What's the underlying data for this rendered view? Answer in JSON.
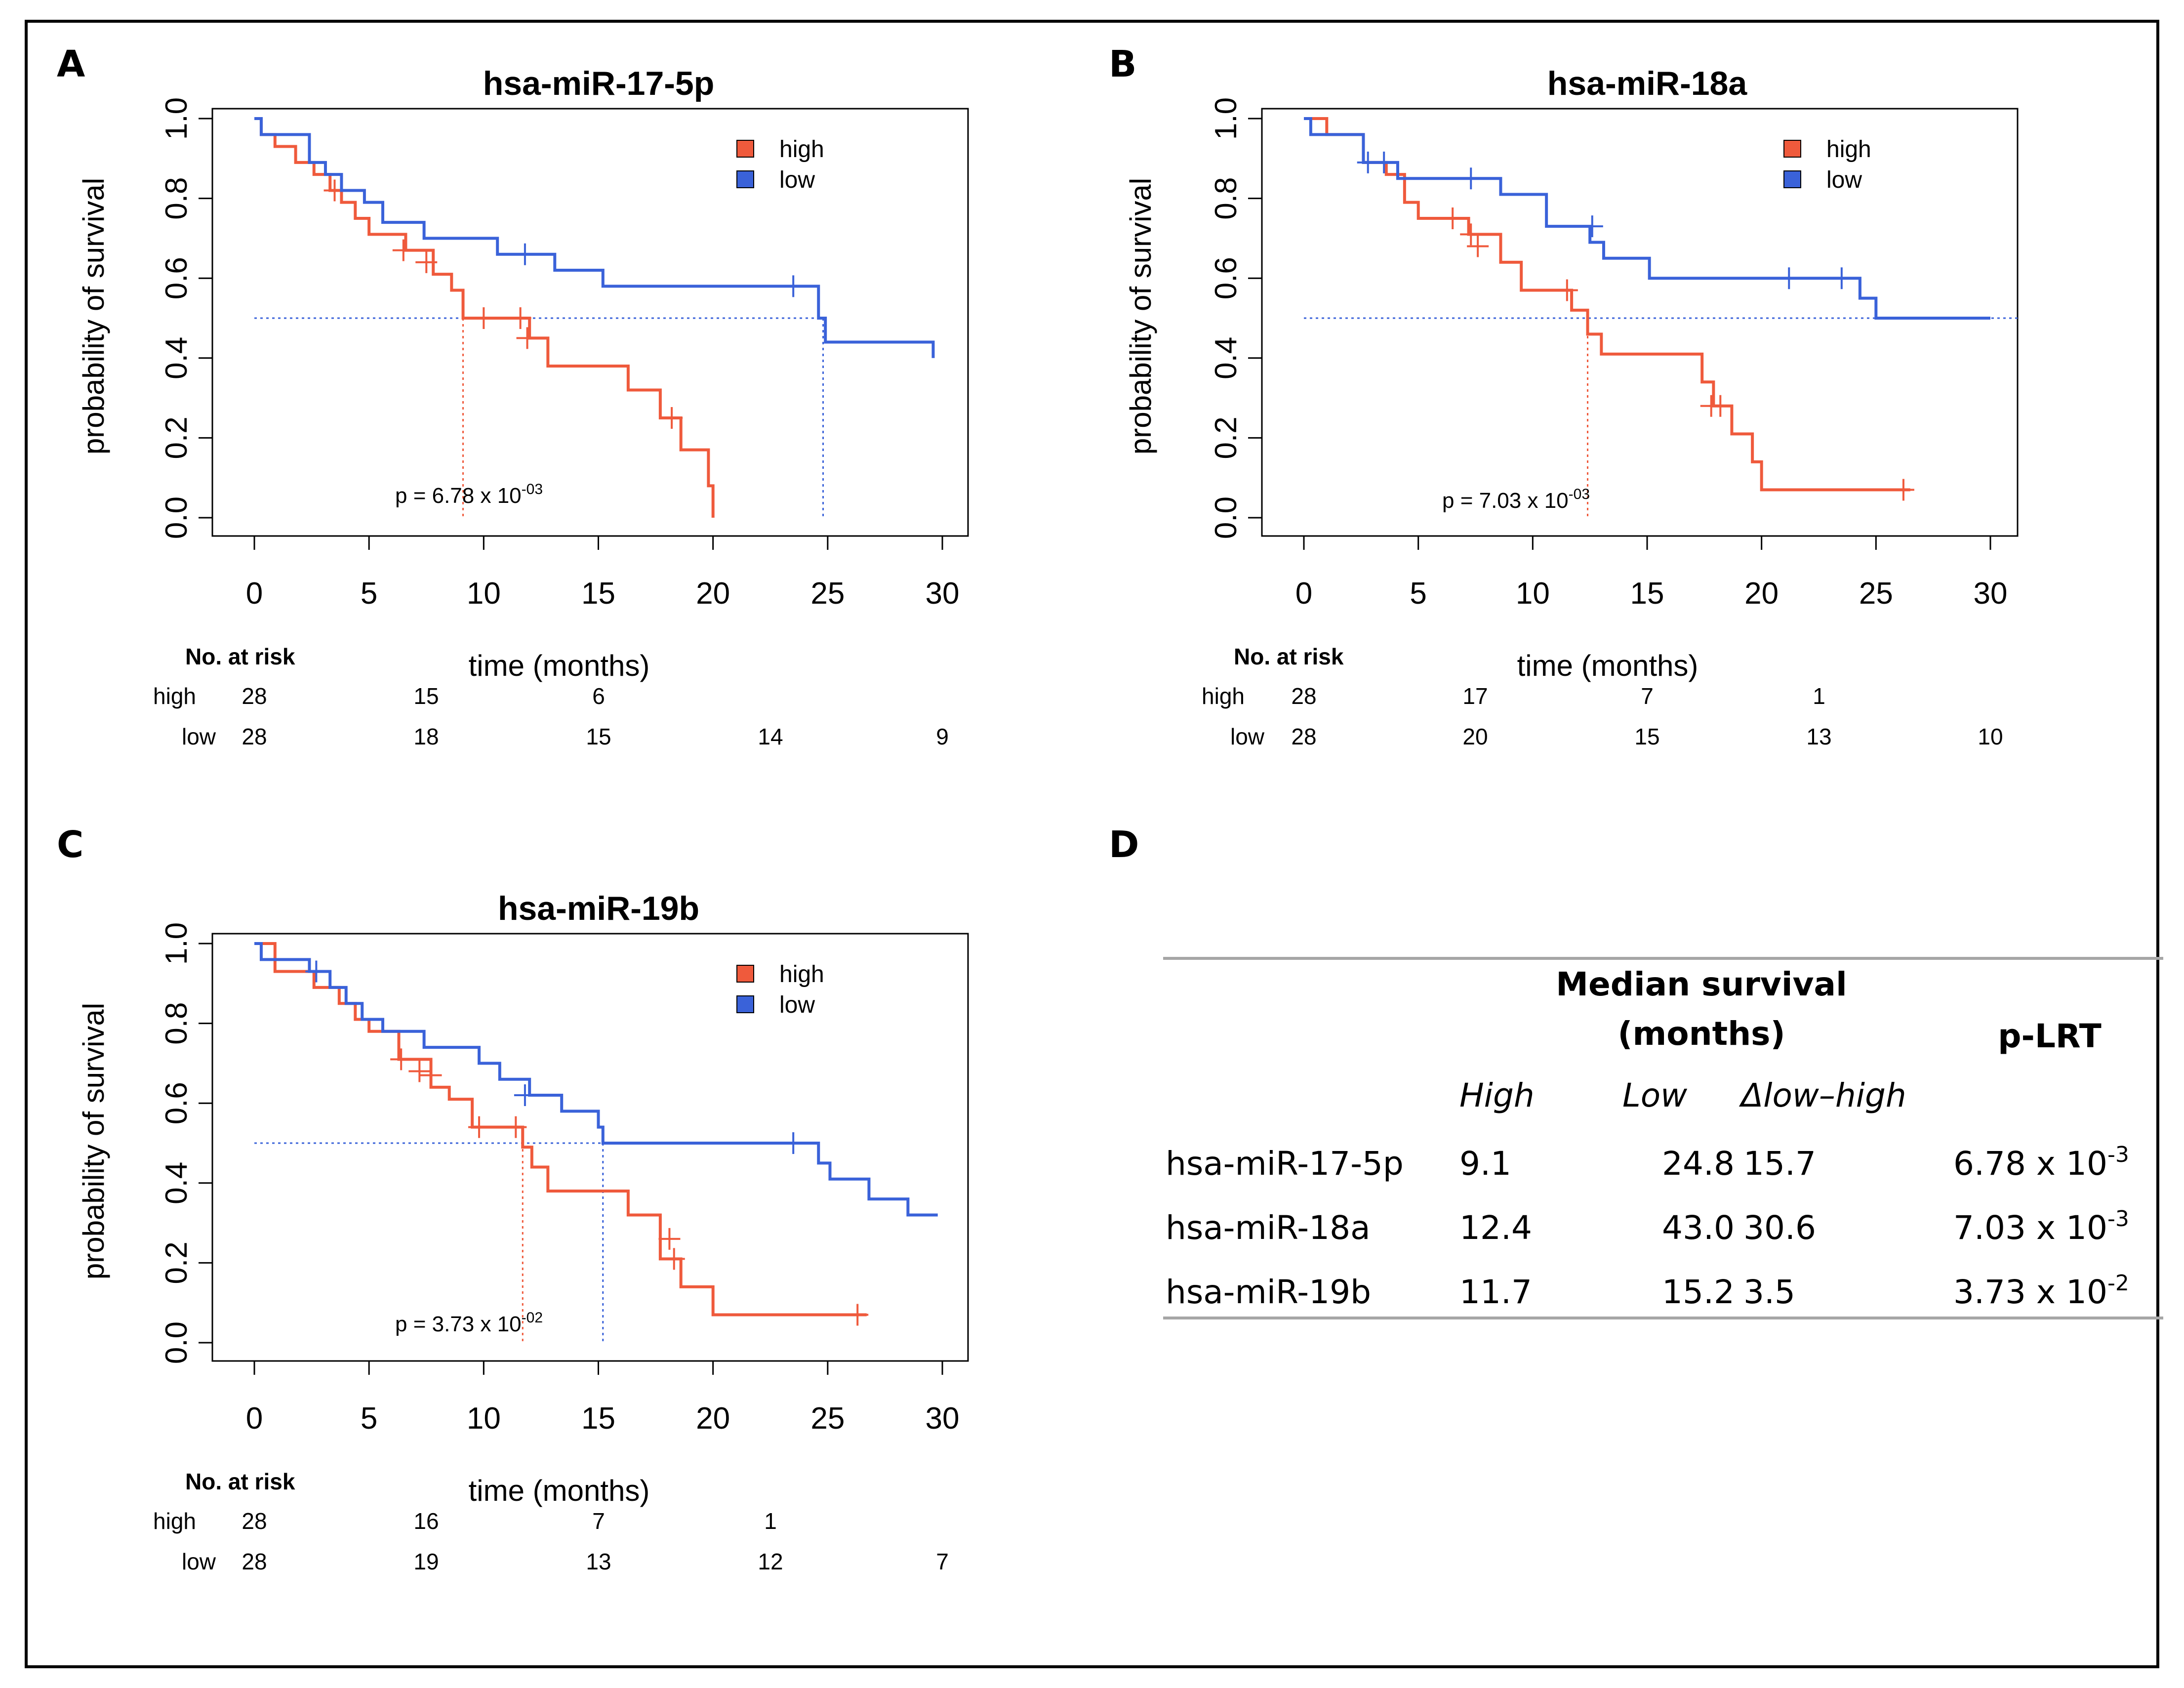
{
  "colors": {
    "high": "#ef5a3c",
    "low": "#3a62d9"
  },
  "chart_data": [
    {
      "panel_label": "A",
      "type": "line",
      "title": "hsa-miR-17-5p",
      "xlabel": "time (months)",
      "ylabel": "probability of survival",
      "xlim": [
        0,
        30
      ],
      "ylim": [
        0,
        1
      ],
      "xticks": [
        "0",
        "5",
        "10",
        "15",
        "20",
        "25",
        "30"
      ],
      "yticks": [
        "0.0",
        "0.2",
        "0.4",
        "0.6",
        "0.8",
        "1.0"
      ],
      "legend": [
        "high",
        "low"
      ],
      "p_text": "p = 6.78 x 10",
      "p_exp": "-03",
      "medians": [
        {
          "series": "high",
          "value": 9.1
        },
        {
          "series": "low",
          "value": 24.8
        }
      ],
      "series": [
        {
          "name": "high",
          "color": "#ef5a3c",
          "x": [
            0,
            0.3,
            0.9,
            1.8,
            2.6,
            3.3,
            3.8,
            4.4,
            5.0,
            6.6,
            7.8,
            8.6,
            9.1,
            12.0,
            12.8,
            16.3,
            17.7,
            18.6,
            19.8,
            20.0
          ],
          "y": [
            1.0,
            0.96,
            0.93,
            0.89,
            0.86,
            0.82,
            0.79,
            0.75,
            0.71,
            0.67,
            0.61,
            0.57,
            0.5,
            0.45,
            0.38,
            0.32,
            0.25,
            0.17,
            0.08,
            0.0
          ],
          "censor_x": [
            3.5,
            6.5,
            7.5,
            10.0,
            11.6,
            11.9,
            18.2
          ],
          "censor_y": [
            0.82,
            0.67,
            0.64,
            0.5,
            0.5,
            0.45,
            0.25
          ]
        },
        {
          "name": "low",
          "color": "#3a62d9",
          "x": [
            0,
            0.3,
            2.4,
            3.1,
            3.8,
            4.8,
            5.6,
            7.4,
            10.6,
            13.1,
            15.2,
            24.6,
            24.9,
            29.6
          ],
          "y": [
            1.0,
            0.96,
            0.89,
            0.86,
            0.82,
            0.79,
            0.74,
            0.7,
            0.66,
            0.62,
            0.58,
            0.5,
            0.44,
            0.4
          ],
          "censor_x": [
            11.8,
            23.5
          ],
          "censor_y": [
            0.66,
            0.58
          ]
        }
      ],
      "risk_table": {
        "header": "No. at risk",
        "rows": [
          {
            "label": "high",
            "values": [
              "28",
              "15",
              "6"
            ]
          },
          {
            "label": "low",
            "values": [
              "28",
              "18",
              "15",
              "14",
              "9"
            ]
          }
        ]
      }
    },
    {
      "panel_label": "B",
      "type": "line",
      "title": "hsa-miR-18a",
      "xlabel": "time (months)",
      "ylabel": "probability of survival",
      "xlim": [
        0,
        30
      ],
      "ylim": [
        0,
        1
      ],
      "xticks": [
        "0",
        "5",
        "10",
        "15",
        "20",
        "25",
        "30"
      ],
      "yticks": [
        "0.0",
        "0.2",
        "0.4",
        "0.6",
        "0.8",
        "1.0"
      ],
      "legend": [
        "high",
        "low"
      ],
      "p_text": "p = 7.03 x 10",
      "p_exp": "-03",
      "medians": [
        {
          "series": "high",
          "value": 12.4
        }
      ],
      "series": [
        {
          "name": "high",
          "color": "#ef5a3c",
          "x": [
            0,
            1.0,
            2.6,
            3.6,
            4.4,
            5.0,
            7.2,
            8.6,
            9.5,
            11.7,
            12.4,
            13.0,
            17.4,
            17.9,
            18.7,
            19.6,
            20.0,
            26.5
          ],
          "y": [
            1.0,
            0.96,
            0.89,
            0.86,
            0.79,
            0.75,
            0.71,
            0.64,
            0.57,
            0.52,
            0.46,
            0.41,
            0.34,
            0.28,
            0.21,
            0.14,
            0.07,
            0.07
          ],
          "censor_x": [
            6.5,
            7.3,
            7.6,
            11.5,
            17.8,
            18.2,
            26.2
          ],
          "censor_y": [
            0.75,
            0.71,
            0.68,
            0.57,
            0.28,
            0.28,
            0.07
          ]
        },
        {
          "name": "low",
          "color": "#3a62d9",
          "x": [
            0,
            0.3,
            2.6,
            4.1,
            8.6,
            10.6,
            12.5,
            13.1,
            15.1,
            23.8,
            24.3,
            25.0,
            30.0
          ],
          "y": [
            1.0,
            0.96,
            0.89,
            0.85,
            0.81,
            0.73,
            0.69,
            0.65,
            0.6,
            0.6,
            0.55,
            0.5,
            0.5
          ],
          "censor_x": [
            2.8,
            3.5,
            7.3,
            12.6,
            21.2,
            23.5
          ],
          "censor_y": [
            0.89,
            0.89,
            0.85,
            0.73,
            0.6,
            0.6
          ]
        }
      ],
      "risk_table": {
        "header": "No. at risk",
        "rows": [
          {
            "label": "high",
            "values": [
              "28",
              "17",
              "7",
              "1"
            ]
          },
          {
            "label": "low",
            "values": [
              "28",
              "20",
              "15",
              "13",
              "10"
            ]
          }
        ]
      }
    },
    {
      "panel_label": "C",
      "type": "line",
      "title": "hsa-miR-19b",
      "xlabel": "time (months)",
      "ylabel": "probability of survival",
      "xlim": [
        0,
        30
      ],
      "ylim": [
        0,
        1
      ],
      "xticks": [
        "0",
        "5",
        "10",
        "15",
        "20",
        "25",
        "30"
      ],
      "yticks": [
        "0.0",
        "0.2",
        "0.4",
        "0.6",
        "0.8",
        "1.0"
      ],
      "legend": [
        "high",
        "low"
      ],
      "p_text": "p = 3.73 x 10",
      "p_exp": "-02",
      "medians": [
        {
          "series": "high",
          "value": 11.7
        },
        {
          "series": "low",
          "value": 15.2
        }
      ],
      "series": [
        {
          "name": "high",
          "color": "#ef5a3c",
          "x": [
            0,
            0.9,
            2.6,
            3.7,
            4.4,
            5.0,
            6.3,
            7.7,
            8.5,
            9.5,
            11.7,
            12.1,
            12.8,
            16.3,
            17.7,
            18.6,
            20.0,
            26.7
          ],
          "y": [
            1.0,
            0.93,
            0.89,
            0.85,
            0.81,
            0.78,
            0.71,
            0.64,
            0.61,
            0.54,
            0.49,
            0.44,
            0.38,
            0.32,
            0.21,
            0.14,
            0.07,
            0.07
          ],
          "censor_x": [
            6.4,
            7.2,
            7.7,
            9.8,
            11.4,
            18.1,
            18.3,
            26.3
          ],
          "censor_y": [
            0.71,
            0.68,
            0.67,
            0.54,
            0.54,
            0.26,
            0.21,
            0.07
          ]
        },
        {
          "name": "low",
          "color": "#3a62d9",
          "x": [
            0,
            0.3,
            2.4,
            3.3,
            4.0,
            4.7,
            5.6,
            7.4,
            9.8,
            10.7,
            12.0,
            13.4,
            15.0,
            15.2,
            23.8,
            24.6,
            25.1,
            26.8,
            28.5,
            29.8
          ],
          "y": [
            1.0,
            0.96,
            0.93,
            0.89,
            0.85,
            0.81,
            0.78,
            0.74,
            0.7,
            0.66,
            0.62,
            0.58,
            0.54,
            0.5,
            0.5,
            0.45,
            0.41,
            0.36,
            0.32,
            0.32
          ],
          "censor_x": [
            2.7,
            11.8,
            23.5
          ],
          "censor_y": [
            0.93,
            0.62,
            0.5
          ]
        }
      ],
      "risk_table": {
        "header": "No. at risk",
        "rows": [
          {
            "label": "high",
            "values": [
              "28",
              "16",
              "7",
              "1"
            ]
          },
          {
            "label": "low",
            "values": [
              "28",
              "19",
              "13",
              "12",
              "7"
            ]
          }
        ]
      }
    },
    {
      "panel_label": "D",
      "type": "table",
      "header_group": [
        "Median survival",
        "(months)"
      ],
      "columns": [
        "High",
        "Low",
        "Δlow–high"
      ],
      "pvalue_header": "p-LRT",
      "rows": [
        {
          "name": "hsa-miR-17-5p",
          "high": "9.1",
          "low": "24.8",
          "delta": "15.7",
          "p_base": "6.78 x 10",
          "p_exp": "-3"
        },
        {
          "name": "hsa-miR-18a",
          "high": "12.4",
          "low": "43.0",
          "delta": "30.6",
          "p_base": "7.03 x 10",
          "p_exp": "-3"
        },
        {
          "name": "hsa-miR-19b",
          "high": "11.7",
          "low": "15.2",
          "delta": "3.5",
          "p_base": "3.73 x 10",
          "p_exp": "-2"
        }
      ]
    }
  ]
}
